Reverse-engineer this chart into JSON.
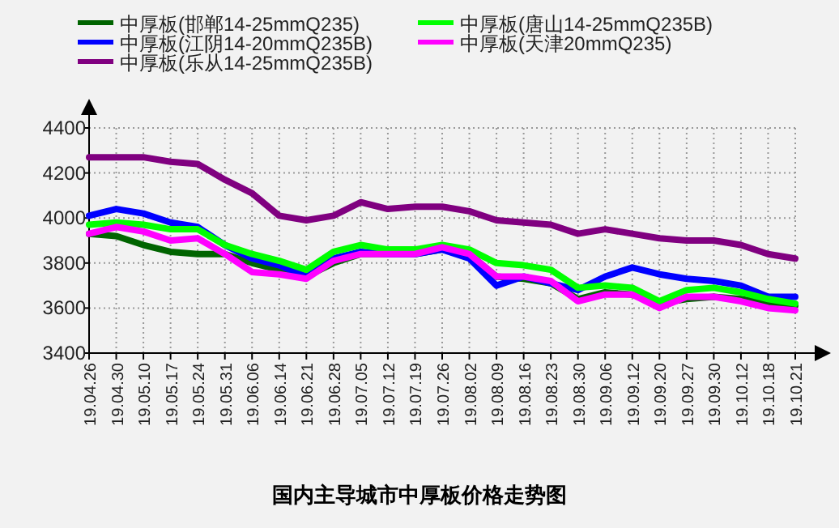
{
  "chart_data": {
    "type": "line",
    "title": "国内主导城市中厚板价格走势图",
    "categories": [
      "19.04.26",
      "19.04.30",
      "19.05.10",
      "19.05.17",
      "19.05.24",
      "19.05.31",
      "19.06.06",
      "19.06.14",
      "19.06.21",
      "19.06.28",
      "19.07.05",
      "19.07.12",
      "19.07.19",
      "19.07.26",
      "19.08.02",
      "19.08.09",
      "19.08.16",
      "19.08.23",
      "19.08.30",
      "19.09.06",
      "19.09.12",
      "19.09.20",
      "19.09.27",
      "19.09.30",
      "19.10.12",
      "19.10.18",
      "19.10.21"
    ],
    "series": [
      {
        "name": "中厚板(邯郸14-25mmQ235)",
        "color": "#006400",
        "values": [
          3930,
          3920,
          3880,
          3850,
          3840,
          3840,
          3800,
          3770,
          3740,
          3800,
          3840,
          3840,
          3840,
          3860,
          3840,
          3740,
          3730,
          3710,
          3640,
          3670,
          3660,
          3620,
          3640,
          3650,
          3640,
          3620,
          3610
        ]
      },
      {
        "name": "中厚板(江阴14-20mmQ235B)",
        "color": "#0000ff",
        "values": [
          4010,
          4040,
          4020,
          3980,
          3960,
          3880,
          3820,
          3790,
          3740,
          3820,
          3850,
          3840,
          3840,
          3860,
          3820,
          3700,
          3740,
          3710,
          3680,
          3740,
          3780,
          3750,
          3730,
          3720,
          3700,
          3650,
          3650
        ]
      },
      {
        "name": "中厚板(乐从14-25mmQ235B)",
        "color": "#800080",
        "values": [
          4270,
          4270,
          4270,
          4250,
          4240,
          4170,
          4110,
          4010,
          3990,
          4010,
          4070,
          4040,
          4050,
          4050,
          4030,
          3990,
          3980,
          3970,
          3930,
          3950,
          3930,
          3910,
          3900,
          3900,
          3880,
          3840,
          3820
        ]
      },
      {
        "name": "中厚板(唐山14-25mmQ235B)",
        "color": "#00ff00",
        "values": [
          3970,
          3980,
          3970,
          3950,
          3950,
          3880,
          3840,
          3810,
          3770,
          3850,
          3880,
          3860,
          3860,
          3880,
          3860,
          3800,
          3790,
          3770,
          3690,
          3700,
          3690,
          3630,
          3680,
          3690,
          3670,
          3640,
          3620
        ]
      },
      {
        "name": "中厚板(天津20mmQ235)",
        "color": "#ff00ff",
        "values": [
          3930,
          3960,
          3940,
          3900,
          3910,
          3840,
          3760,
          3750,
          3730,
          3810,
          3840,
          3840,
          3840,
          3870,
          3840,
          3740,
          3740,
          3720,
          3630,
          3660,
          3660,
          3600,
          3650,
          3650,
          3630,
          3600,
          3590
        ]
      }
    ],
    "ylim": [
      3400,
      4400
    ],
    "yticks": [
      3400,
      3600,
      3800,
      4000,
      4200,
      4400
    ],
    "grid": true,
    "legend": "top"
  }
}
